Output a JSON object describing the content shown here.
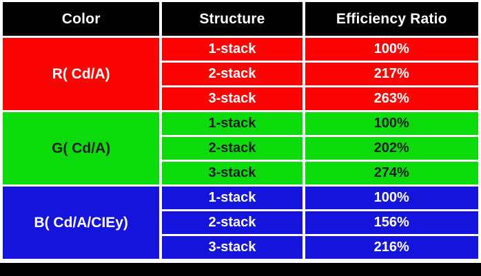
{
  "table": {
    "headers": [
      "Color",
      "Structure",
      "Efficiency Ratio"
    ],
    "groups": [
      {
        "label": "R( Cd/A)",
        "bg": "#fa0404",
        "fg": "#ffffff",
        "rows": [
          {
            "structure": "1-stack",
            "efficiency": "100%"
          },
          {
            "structure": "2-stack",
            "efficiency": "217%"
          },
          {
            "structure": "3-stack",
            "efficiency": "263%"
          }
        ]
      },
      {
        "label": "G( Cd/A)",
        "bg": "#0bdb0b",
        "fg": "#1f1f1f",
        "rows": [
          {
            "structure": "1-stack",
            "efficiency": "100%"
          },
          {
            "structure": "2-stack",
            "efficiency": "202%"
          },
          {
            "structure": "3-stack",
            "efficiency": "274%"
          }
        ]
      },
      {
        "label": "B( Cd/A/CIEy)",
        "bg": "#1414dd",
        "fg": "#ffffff",
        "rows": [
          {
            "structure": "1-stack",
            "efficiency": "100%"
          },
          {
            "structure": "2-stack",
            "efficiency": "156%"
          },
          {
            "structure": "3-stack",
            "efficiency": "216%"
          }
        ]
      }
    ]
  },
  "colors": {
    "header_bg": "#000000",
    "header_fg": "#ffffff",
    "footer_bg": "#000000",
    "background": "#ffffff"
  },
  "chart_data": {
    "type": "table",
    "columns": [
      "Color",
      "Structure",
      "Efficiency Ratio"
    ],
    "rows": [
      [
        "R( Cd/A)",
        "1-stack",
        "100%"
      ],
      [
        "R( Cd/A)",
        "2-stack",
        "217%"
      ],
      [
        "R( Cd/A)",
        "3-stack",
        "263%"
      ],
      [
        "G( Cd/A)",
        "1-stack",
        "100%"
      ],
      [
        "G( Cd/A)",
        "2-stack",
        "202%"
      ],
      [
        "G( Cd/A)",
        "3-stack",
        "274%"
      ],
      [
        "B( Cd/A/CIEy)",
        "1-stack",
        "100%"
      ],
      [
        "B( Cd/A/CIEy)",
        "2-stack",
        "156%"
      ],
      [
        "B( Cd/A/CIEy)",
        "3-stack",
        "216%"
      ]
    ]
  }
}
